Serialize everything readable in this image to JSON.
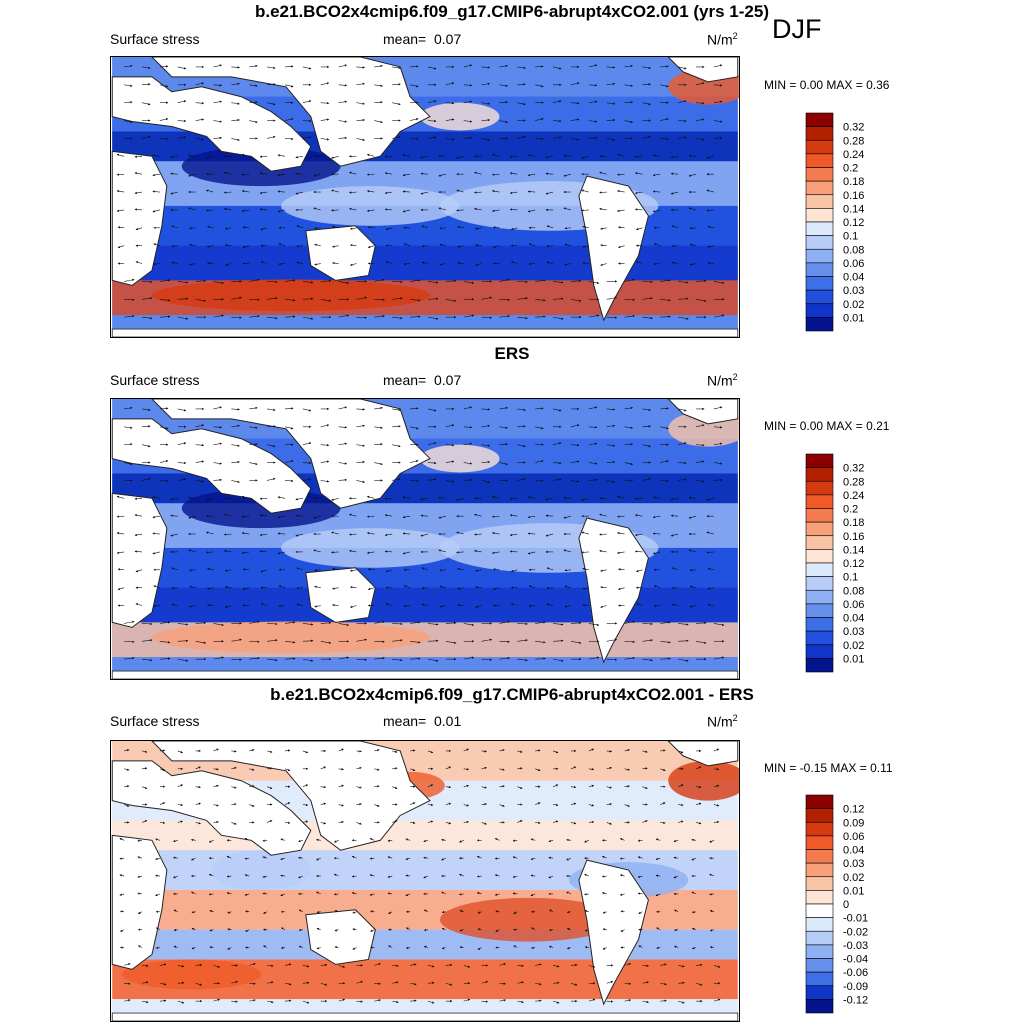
{
  "season_label": "DJF",
  "colors": {
    "ocean_base": "#2d5ee6",
    "ocean_deep": "#0a2db4",
    "land": "#ffffff",
    "coast": "#222222",
    "strong_wind": "#e0502a"
  },
  "panels": [
    {
      "title": "b.e21.BCO2x4cmip6.f09_g17.CMIP6-abrupt4xCO2.001 (yrs 1-25)",
      "left_label": "Surface stress",
      "mean_label": "mean=",
      "mean_value": "0.07",
      "units_base": "N/m",
      "units_exp": "2",
      "min_label": "MIN =",
      "min_value": "0.00",
      "max_label": "MAX =",
      "max_value": "0.36",
      "colorbar": {
        "labels": [
          "0.32",
          "0.28",
          "0.24",
          "0.2",
          "0.18",
          "0.16",
          "0.14",
          "0.12",
          "0.1",
          "0.08",
          "0.06",
          "0.04",
          "0.03",
          "0.02",
          "0.01"
        ],
        "colors": [
          "#8b0000",
          "#b32000",
          "#d63a10",
          "#f05a28",
          "#f47c50",
          "#f7a07a",
          "#f9c3a6",
          "#fde4d4",
          "#dce9fb",
          "#b7cdf7",
          "#8fb0f2",
          "#6690ec",
          "#3f6fe6",
          "#2050dd",
          "#1035c8",
          "#04148f"
        ]
      }
    },
    {
      "title": "ERS",
      "left_label": "Surface stress",
      "mean_label": "mean=",
      "mean_value": "0.07",
      "units_base": "N/m",
      "units_exp": "2",
      "min_label": "MIN =",
      "min_value": "0.00",
      "max_label": "MAX =",
      "max_value": "0.21",
      "colorbar": {
        "labels": [
          "0.32",
          "0.28",
          "0.24",
          "0.2",
          "0.18",
          "0.16",
          "0.14",
          "0.12",
          "0.1",
          "0.08",
          "0.06",
          "0.04",
          "0.03",
          "0.02",
          "0.01"
        ],
        "colors": [
          "#8b0000",
          "#b32000",
          "#d63a10",
          "#f05a28",
          "#f47c50",
          "#f7a07a",
          "#f9c3a6",
          "#fde4d4",
          "#dce9fb",
          "#b7cdf7",
          "#8fb0f2",
          "#6690ec",
          "#3f6fe6",
          "#2050dd",
          "#1035c8",
          "#04148f"
        ]
      }
    },
    {
      "title": "b.e21.BCO2x4cmip6.f09_g17.CMIP6-abrupt4xCO2.001 - ERS",
      "left_label": "Surface stress",
      "mean_label": "mean=",
      "mean_value": "0.01",
      "units_base": "N/m",
      "units_exp": "2",
      "min_label": "MIN =",
      "min_value": "-0.15",
      "max_label": "MAX =",
      "max_value": "0.11",
      "colorbar": {
        "labels": [
          "0.12",
          "0.09",
          "0.06",
          "0.04",
          "0.03",
          "0.02",
          "0.01",
          "0",
          "-0.01",
          "-0.02",
          "-0.03",
          "-0.04",
          "-0.06",
          "-0.09",
          "-0.12"
        ],
        "colors": [
          "#8b0000",
          "#b32000",
          "#d63a10",
          "#f05a28",
          "#f47c50",
          "#f7a07a",
          "#f9c3a6",
          "#fde4d4",
          "#ffffff",
          "#dce9fb",
          "#b7cdf7",
          "#8fb0f2",
          "#6690ec",
          "#3f6fe6",
          "#1035c8",
          "#04148f"
        ]
      }
    }
  ],
  "chart_data": [
    {
      "type": "heatmap",
      "title": "b.e21.BCO2x4cmip6.f09_g17.CMIP6-abrupt4xCO2.001 (yrs 1-25)",
      "variable": "Surface stress",
      "units": "N/m2",
      "season": "DJF",
      "mean": 0.07,
      "min": 0.0,
      "max": 0.36,
      "contour_levels": [
        0.01,
        0.02,
        0.03,
        0.04,
        0.06,
        0.08,
        0.1,
        0.12,
        0.14,
        0.16,
        0.18,
        0.2,
        0.24,
        0.28,
        0.32
      ],
      "overlay": "wind stress vectors"
    },
    {
      "type": "heatmap",
      "title": "ERS",
      "variable": "Surface stress",
      "units": "N/m2",
      "season": "DJF",
      "mean": 0.07,
      "min": 0.0,
      "max": 0.21,
      "contour_levels": [
        0.01,
        0.02,
        0.03,
        0.04,
        0.06,
        0.08,
        0.1,
        0.12,
        0.14,
        0.16,
        0.18,
        0.2,
        0.24,
        0.28,
        0.32
      ],
      "overlay": "wind stress vectors"
    },
    {
      "type": "heatmap",
      "title": "b.e21.BCO2x4cmip6.f09_g17.CMIP6-abrupt4xCO2.001 - ERS",
      "variable": "Surface stress",
      "units": "N/m2",
      "season": "DJF",
      "mean": 0.01,
      "min": -0.15,
      "max": 0.11,
      "contour_levels": [
        -0.12,
        -0.09,
        -0.06,
        -0.04,
        -0.03,
        -0.02,
        -0.01,
        0,
        0.01,
        0.02,
        0.03,
        0.04,
        0.06,
        0.09,
        0.12
      ],
      "overlay": "wind stress difference vectors"
    }
  ]
}
